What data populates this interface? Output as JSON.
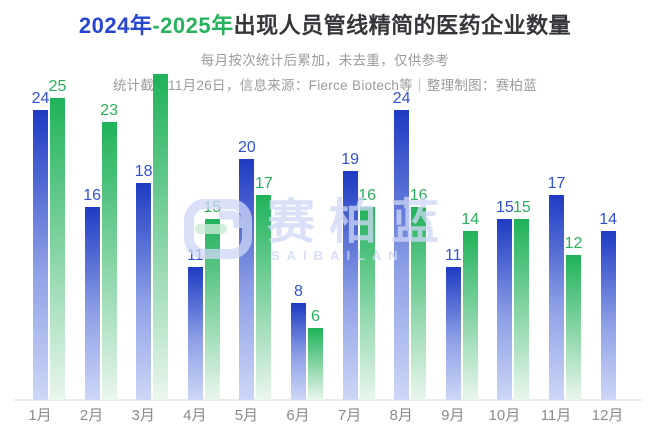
{
  "header": {
    "title_part_2024": "2024年",
    "title_part_2025": "-2025年",
    "title_part_rest": "出现人员管线精简的医药企业数量",
    "subtitle1": "每月按次统计后累加，未去重，仅供参考",
    "subtitle2": "统计截至11月26日，信息来源：Fierce Biotech等｜整理制图：赛柏蓝"
  },
  "watermark": {
    "cn": "赛柏蓝",
    "en": "SAIBAILAN"
  },
  "colors": {
    "title_blue": "#2946d3",
    "title_green": "#27b25d",
    "bar_blue_top": "#1e3bc3",
    "bar_blue_bottom": "#cdd7f7",
    "bar_green_top": "#1fb259",
    "bar_green_bottom": "#eaf6ed",
    "value_label_blue": "#3150d2",
    "value_label_green": "#2baf5f",
    "axis_label_gray": "#8a8a8f"
  },
  "chart_data": {
    "type": "bar",
    "title": "2024年-2025年出现人员管线精简的医药企业数量",
    "subtitle": "每月按次统计后累加，未去重，仅供参考；统计截至11月26日，信息来源：Fierce Biotech等｜整理制图：赛柏蓝",
    "categories": [
      "1月",
      "2月",
      "3月",
      "4月",
      "5月",
      "6月",
      "7月",
      "8月",
      "9月",
      "10月",
      "11月",
      "12月"
    ],
    "series": [
      {
        "name": "2024年",
        "values": [
          24,
          16,
          18,
          11,
          20,
          8,
          19,
          24,
          11,
          15,
          17,
          14
        ],
        "labels": [
          "24",
          "16",
          "18",
          "11",
          "20",
          "8",
          "19",
          "24",
          "11",
          "15",
          "17",
          "14"
        ]
      },
      {
        "name": "2025年",
        "values": [
          25,
          23,
          27,
          15,
          17,
          6,
          16,
          16,
          14,
          15,
          12,
          null
        ],
        "labels": [
          "25",
          "23",
          "",
          "15",
          "17",
          "6",
          "16",
          "16",
          "14",
          "15",
          "12",
          ""
        ]
      }
    ],
    "ylim": [
      0,
      27
    ],
    "grid": false,
    "legend": "none",
    "value_labels_shown": true
  }
}
